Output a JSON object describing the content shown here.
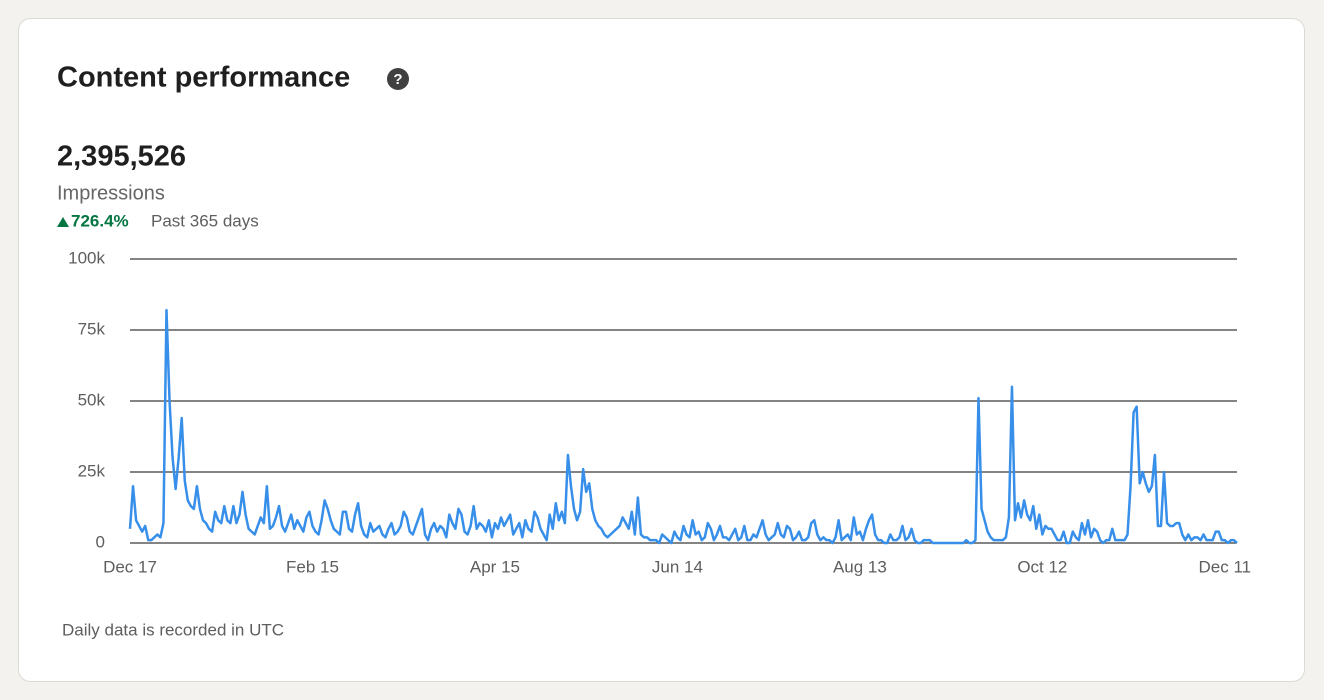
{
  "header": {
    "title": "Content performance"
  },
  "metric": {
    "value": "2,395,526",
    "label": "Impressions",
    "change": "726.4%",
    "period": "Past 365 days"
  },
  "footer": "Daily data is recorded in UTC",
  "chart_data": {
    "type": "line",
    "color": "#378fe9",
    "grid": true,
    "xlim": [
      0,
      364
    ],
    "xticks": [
      {
        "value": 0,
        "label": "Dec 17"
      },
      {
        "value": 60,
        "label": "Feb 15"
      },
      {
        "value": 120,
        "label": "Apr 15"
      },
      {
        "value": 180,
        "label": "Jun 14"
      },
      {
        "value": 240,
        "label": "Aug 13"
      },
      {
        "value": 300,
        "label": "Oct 12"
      },
      {
        "value": 360,
        "label": "Dec 11"
      }
    ],
    "ylim": [
      0,
      100000
    ],
    "yticks": [
      {
        "value": 0,
        "label": "0"
      },
      {
        "value": 25000,
        "label": "25k"
      },
      {
        "value": 50000,
        "label": "50k"
      },
      {
        "value": 75000,
        "label": "75k"
      },
      {
        "value": 100000,
        "label": "100k"
      }
    ],
    "values": [
      5000,
      20000,
      8000,
      6000,
      4000,
      6000,
      1000,
      1000,
      2000,
      3000,
      2000,
      7000,
      82000,
      50000,
      30000,
      19000,
      30000,
      44000,
      22000,
      15000,
      13000,
      12000,
      20000,
      12000,
      8000,
      7000,
      5000,
      4000,
      11000,
      8000,
      7000,
      13000,
      8000,
      7000,
      13000,
      7000,
      10000,
      18000,
      10000,
      5000,
      4000,
      3000,
      6000,
      9000,
      7000,
      20000,
      5000,
      6000,
      9000,
      13000,
      6000,
      4000,
      7000,
      10000,
      5000,
      8000,
      6000,
      4000,
      9000,
      11000,
      6000,
      4000,
      3000,
      8000,
      15000,
      12000,
      8000,
      5000,
      4000,
      3000,
      11000,
      11000,
      5000,
      4000,
      10000,
      14000,
      6000,
      3000,
      2000,
      7000,
      4000,
      5000,
      6000,
      3000,
      2000,
      5000,
      7000,
      3000,
      4000,
      6000,
      11000,
      9000,
      4000,
      3000,
      6000,
      9000,
      12000,
      3000,
      1000,
      5000,
      7000,
      4000,
      6000,
      5000,
      2000,
      10000,
      7000,
      5000,
      12000,
      10000,
      4000,
      3000,
      6000,
      13000,
      5000,
      7000,
      6000,
      4000,
      8000,
      2000,
      7000,
      5000,
      9000,
      6000,
      8000,
      10000,
      3000,
      5000,
      7000,
      2000,
      8000,
      5000,
      4000,
      11000,
      9000,
      5000,
      3000,
      1000,
      10000,
      5000,
      14000,
      8000,
      11000,
      7000,
      31000,
      20000,
      12000,
      8000,
      11000,
      26000,
      18000,
      21000,
      12000,
      8000,
      6000,
      5000,
      3000,
      2000,
      3000,
      4000,
      5000,
      6000,
      9000,
      7000,
      5000,
      11000,
      3000,
      16000,
      3000,
      2000,
      2000,
      1000,
      1000,
      1000,
      0,
      3000,
      2000,
      1000,
      0,
      4000,
      2000,
      1000,
      6000,
      3000,
      2000,
      8000,
      3000,
      4000,
      1000,
      2000,
      7000,
      5000,
      1000,
      3000,
      6000,
      2000,
      2000,
      1000,
      3000,
      5000,
      1000,
      2000,
      6000,
      1000,
      1000,
      3000,
      2000,
      5000,
      8000,
      3000,
      1000,
      2000,
      3000,
      7000,
      3000,
      2000,
      6000,
      5000,
      1000,
      2000,
      4000,
      1000,
      1000,
      2000,
      7000,
      8000,
      3000,
      1000,
      2000,
      1000,
      1000,
      0,
      2000,
      8000,
      1000,
      2000,
      3000,
      1000,
      9000,
      3000,
      4000,
      1000,
      5000,
      8000,
      10000,
      3000,
      1000,
      1000,
      0,
      0,
      3000,
      1000,
      1000,
      2000,
      6000,
      1000,
      2000,
      5000,
      1000,
      0,
      0,
      1000,
      1000,
      1000,
      0,
      0,
      0,
      0,
      0,
      0,
      0,
      0,
      0,
      0,
      0,
      1000,
      0,
      0,
      1000,
      51000,
      12000,
      8000,
      4000,
      2000,
      1000,
      1000,
      1000,
      1000,
      2000,
      9000,
      55000,
      8000,
      14000,
      9000,
      15000,
      10000,
      8000,
      13000,
      5000,
      10000,
      3000,
      6000,
      5000,
      5000,
      3000,
      1000,
      1000,
      4000,
      0,
      0,
      4000,
      2000,
      1000,
      7000,
      3000,
      8000,
      2000,
      5000,
      4000,
      1000,
      0,
      1000,
      1000,
      5000,
      1000,
      1000,
      1000,
      1000,
      3000,
      20000,
      46000,
      48000,
      21000,
      25000,
      21000,
      18000,
      20000,
      31000,
      6000,
      6000,
      25000,
      7000,
      6000,
      6000,
      7000,
      7000,
      3000,
      1000,
      3000,
      1000,
      2000,
      2000,
      1000,
      3000,
      1000,
      1000,
      1000,
      4000,
      4000,
      1000,
      1000,
      0,
      1000,
      1000,
      0
    ]
  }
}
